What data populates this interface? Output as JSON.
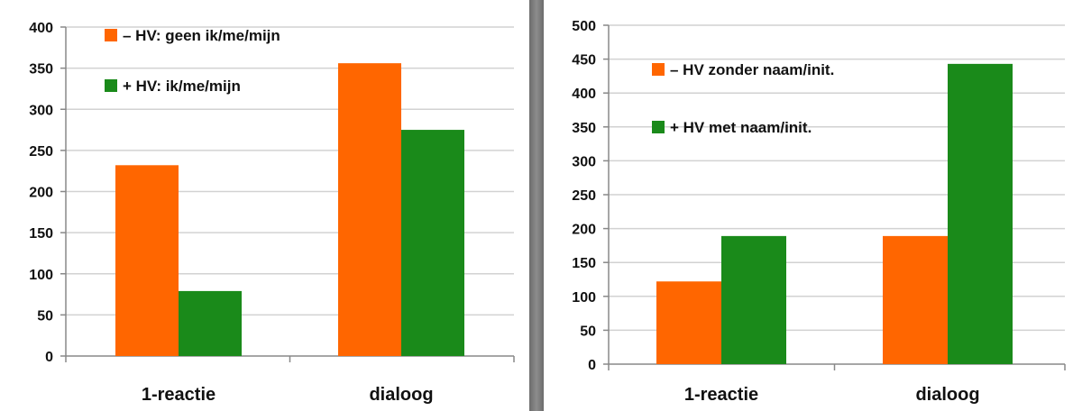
{
  "chart_data": [
    {
      "type": "bar",
      "categories": [
        "1-reactie",
        "dialoog"
      ],
      "series": [
        {
          "name": "– HV: geen ik/me/mijn",
          "color": "#ff6600",
          "values": [
            232,
            356
          ]
        },
        {
          "name": "+ HV: ik/me/mijn",
          "color": "#1a8a1a",
          "values": [
            79,
            275
          ]
        }
      ],
      "ylim": [
        0,
        400
      ],
      "yticks": [
        0,
        50,
        100,
        150,
        200,
        250,
        300,
        350,
        400
      ],
      "grid": true,
      "legend_position": "top-left"
    },
    {
      "type": "bar",
      "categories": [
        "1-reactie",
        "dialoog"
      ],
      "series": [
        {
          "name": "– HV zonder naam/init.",
          "color": "#ff6600",
          "values": [
            122,
            189
          ]
        },
        {
          "name": "+ HV met naam/init.",
          "color": "#1a8a1a",
          "values": [
            189,
            443
          ]
        }
      ],
      "ylim": [
        0,
        500
      ],
      "yticks": [
        0,
        50,
        100,
        150,
        200,
        250,
        300,
        350,
        400,
        450,
        500
      ],
      "grid": true,
      "legend_position": "top-left"
    }
  ]
}
